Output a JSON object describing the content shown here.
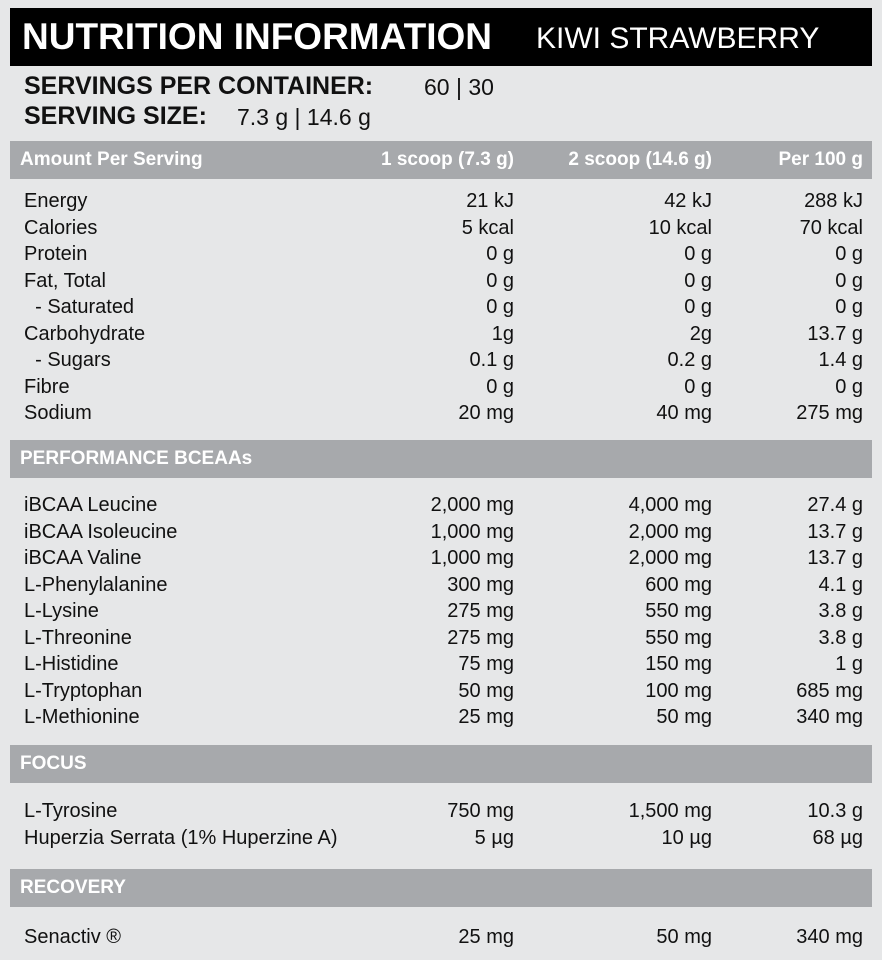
{
  "header": {
    "title": "NUTRITION INFORMATION",
    "subtitle": "KIWI STRAWBERRY"
  },
  "servings": {
    "per_container_label": "SERVINGS PER CONTAINER:",
    "per_container_value": "60 | 30",
    "size_label": "SERVING SIZE:",
    "size_value": "7.3 g | 14.6 g"
  },
  "table": {
    "columns": [
      "Amount Per Serving",
      "1 scoop (7.3 g)",
      "2 scoop (14.6 g)",
      "Per 100 g"
    ],
    "sections": [
      {
        "rows": [
          [
            "Energy",
            "21 kJ",
            "42 kJ",
            "288 kJ"
          ],
          [
            "Calories",
            "5 kcal",
            "10 kcal",
            "70 kcal"
          ],
          [
            "Protein",
            "0 g",
            "0 g",
            "0 g"
          ],
          [
            "Fat, Total",
            "0 g",
            "0 g",
            "0 g"
          ],
          [
            "  - Saturated",
            "0 g",
            "0 g",
            "0 g"
          ],
          [
            "Carbohydrate",
            "1g",
            "2g",
            "13.7 g"
          ],
          [
            "  - Sugars",
            "0.1 g",
            "0.2 g",
            "1.4 g"
          ],
          [
            "Fibre",
            "0 g",
            "0 g",
            "0 g"
          ],
          [
            "Sodium",
            "20 mg",
            "40 mg",
            "275 mg"
          ]
        ]
      },
      {
        "heading": "PERFORMANCE BCEAAs",
        "rows": [
          [
            "iBCAA Leucine",
            "2,000 mg",
            "4,000 mg",
            "27.4 g"
          ],
          [
            "iBCAA Isoleucine",
            "1,000 mg",
            "2,000 mg",
            "13.7 g"
          ],
          [
            "iBCAA Valine",
            "1,000 mg",
            "2,000 mg",
            "13.7 g"
          ],
          [
            "L-Phenylalanine",
            "300 mg",
            "600 mg",
            "4.1 g"
          ],
          [
            "L-Lysine",
            "275 mg",
            "550 mg",
            "3.8 g"
          ],
          [
            "L-Threonine",
            "275 mg",
            "550 mg",
            "3.8 g"
          ],
          [
            "L-Histidine",
            "75 mg",
            "150 mg",
            "1 g"
          ],
          [
            "L-Tryptophan",
            "50 mg",
            "100 mg",
            "685 mg"
          ],
          [
            "L-Methionine",
            "25 mg",
            "50 mg",
            "340 mg"
          ]
        ]
      },
      {
        "heading": "FOCUS",
        "rows": [
          [
            "L-Tyrosine",
            "750 mg",
            "1,500 mg",
            "10.3 g"
          ],
          [
            "Huperzia Serrata (1% Huperzine A)",
            "5 µg",
            "10 µg",
            "68 µg"
          ]
        ]
      },
      {
        "heading": "RECOVERY",
        "rows": [
          [
            "Senactiv ®",
            "25 mg",
            "50 mg",
            "340 mg"
          ]
        ]
      }
    ]
  }
}
